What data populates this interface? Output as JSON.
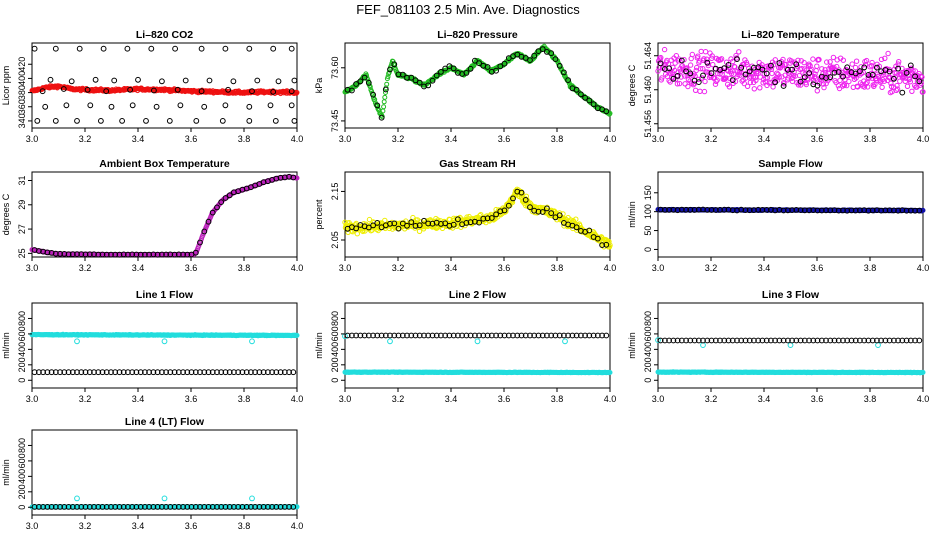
{
  "figure": {
    "title": "FEF_081103  2.5 Min. Ave. Diagnostics"
  },
  "colors": {
    "black": "#000000",
    "red": "#ee1111",
    "green": "#22bb22",
    "magenta": "#ee22ee",
    "purple": "#bb22bb",
    "yellow": "#eeee00",
    "blue": "#1111aa",
    "cyan": "#22dddd"
  },
  "chart_data": [
    {
      "type": "scatter",
      "title": "Li–820 CO2",
      "xlabel": "",
      "ylabel": "Licor ppm",
      "xlim": [
        3.0,
        4.0
      ],
      "ylim": [
        330,
        450
      ],
      "xticks": [
        "3.0",
        "3.2",
        "3.4",
        "3.6",
        "3.8",
        "4.0"
      ],
      "yticks": [
        "340",
        "360",
        "380",
        "400",
        "420"
      ],
      "series": [
        {
          "color": "red",
          "kind": "dense",
          "base": [
            [
              3.0,
              382
            ],
            [
              3.05,
              387
            ],
            [
              3.1,
              389
            ],
            [
              3.15,
              385
            ],
            [
              3.2,
              384
            ],
            [
              3.3,
              383
            ],
            [
              3.4,
              385
            ],
            [
              3.5,
              384
            ],
            [
              3.6,
              382
            ],
            [
              3.7,
              381
            ],
            [
              3.8,
              380
            ],
            [
              3.9,
              381
            ],
            [
              4.0,
              380
            ]
          ],
          "noise": 3
        },
        {
          "color": "black",
          "kind": "points",
          "points": [
            [
              3.02,
              340
            ],
            [
              3.09,
              340
            ],
            [
              3.17,
              340
            ],
            [
              3.26,
              340
            ],
            [
              3.34,
              340
            ],
            [
              3.43,
              340
            ],
            [
              3.52,
              340
            ],
            [
              3.62,
              340
            ],
            [
              3.72,
              340
            ],
            [
              3.82,
              340
            ],
            [
              3.92,
              340
            ],
            [
              3.99,
              340
            ],
            [
              3.05,
              360
            ],
            [
              3.13,
              362
            ],
            [
              3.22,
              362
            ],
            [
              3.3,
              360
            ],
            [
              3.38,
              362
            ],
            [
              3.47,
              360
            ],
            [
              3.56,
              362
            ],
            [
              3.65,
              360
            ],
            [
              3.73,
              362
            ],
            [
              3.82,
              360
            ],
            [
              3.9,
              362
            ],
            [
              3.98,
              362
            ],
            [
              3.04,
              382
            ],
            [
              3.12,
              385
            ],
            [
              3.21,
              384
            ],
            [
              3.28,
              382
            ],
            [
              3.37,
              384
            ],
            [
              3.46,
              383
            ],
            [
              3.55,
              384
            ],
            [
              3.64,
              382
            ],
            [
              3.74,
              384
            ],
            [
              3.83,
              382
            ],
            [
              3.91,
              381
            ],
            [
              3.98,
              382
            ],
            [
              3.07,
              398
            ],
            [
              3.15,
              396
            ],
            [
              3.24,
              398
            ],
            [
              3.31,
              397
            ],
            [
              3.4,
              398
            ],
            [
              3.49,
              396
            ],
            [
              3.58,
              397
            ],
            [
              3.67,
              397
            ],
            [
              3.76,
              396
            ],
            [
              3.85,
              397
            ],
            [
              3.93,
              396
            ],
            [
              3.99,
              397
            ],
            [
              3.01,
              442
            ],
            [
              3.09,
              442
            ],
            [
              3.18,
              442
            ],
            [
              3.27,
              442
            ],
            [
              3.36,
              442
            ],
            [
              3.45,
              442
            ],
            [
              3.54,
              442
            ],
            [
              3.64,
              442
            ],
            [
              3.73,
              442
            ],
            [
              3.82,
              442
            ],
            [
              3.91,
              442
            ],
            [
              3.98,
              442
            ]
          ]
        }
      ]
    },
    {
      "type": "scatter",
      "title": "Li–820 Pressure",
      "xlabel": "",
      "ylabel": "kPa",
      "xlim": [
        3.0,
        4.0
      ],
      "ylim": [
        73.43,
        73.67
      ],
      "xticks": [
        "3.0",
        "3.2",
        "3.4",
        "3.6",
        "3.8",
        "4.0"
      ],
      "yticks": [
        "73.45",
        "73.60"
      ],
      "series": [
        {
          "color": "green",
          "kind": "dense",
          "base": [
            [
              3.0,
              73.53
            ],
            [
              3.04,
              73.55
            ],
            [
              3.08,
              73.58
            ],
            [
              3.11,
              73.51
            ],
            [
              3.14,
              73.46
            ],
            [
              3.16,
              73.57
            ],
            [
              3.18,
              73.62
            ],
            [
              3.2,
              73.58
            ],
            [
              3.25,
              73.57
            ],
            [
              3.3,
              73.55
            ],
            [
              3.35,
              73.58
            ],
            [
              3.4,
              73.6
            ],
            [
              3.45,
              73.58
            ],
            [
              3.5,
              73.62
            ],
            [
              3.55,
              73.59
            ],
            [
              3.6,
              73.61
            ],
            [
              3.65,
              73.64
            ],
            [
              3.7,
              73.62
            ],
            [
              3.75,
              73.66
            ],
            [
              3.8,
              73.62
            ],
            [
              3.85,
              73.55
            ],
            [
              3.9,
              73.52
            ],
            [
              3.95,
              73.49
            ],
            [
              4.0,
              73.47
            ]
          ],
          "noise": 0.006
        },
        {
          "color": "black",
          "kind": "follow",
          "step": 0.016,
          "noise": 0.012
        }
      ]
    },
    {
      "type": "scatter",
      "title": "Li–820 Temperature",
      "xlabel": "",
      "ylabel": "degrees C",
      "xlim": [
        3.0,
        4.0
      ],
      "ylim": [
        51.4555,
        51.4655
      ],
      "xticks": [
        "3.0",
        "3.2",
        "3.4",
        "3.6",
        "3.8",
        "4.0"
      ],
      "yticks": [
        "51.456",
        "51.460",
        "51.464"
      ],
      "series": [
        {
          "color": "magenta",
          "kind": "scatter",
          "base": [
            [
              3.0,
              51.4625
            ],
            [
              4.0,
              51.4615
            ]
          ],
          "noise": 0.0035,
          "count": 480
        },
        {
          "color": "black",
          "kind": "follow",
          "step": 0.016,
          "noise": 0.0025
        }
      ]
    },
    {
      "type": "scatter",
      "title": "Ambient Box Temperature",
      "xlabel": "",
      "ylabel": "degrees C",
      "xlim": [
        3.0,
        4.0
      ],
      "ylim": [
        24.7,
        31.7
      ],
      "xticks": [
        "3.0",
        "3.2",
        "3.4",
        "3.6",
        "3.8",
        "4.0"
      ],
      "yticks": [
        "25",
        "27",
        "29",
        "31"
      ],
      "series": [
        {
          "color": "purple",
          "kind": "dense",
          "base": [
            [
              3.0,
              25.3
            ],
            [
              3.05,
              25.1
            ],
            [
              3.1,
              24.95
            ],
            [
              3.2,
              24.92
            ],
            [
              3.3,
              24.9
            ],
            [
              3.4,
              24.9
            ],
            [
              3.5,
              24.9
            ],
            [
              3.61,
              24.9
            ],
            [
              3.62,
              25.1
            ],
            [
              3.65,
              26.8
            ],
            [
              3.68,
              28.3
            ],
            [
              3.72,
              29.4
            ],
            [
              3.76,
              30.0
            ],
            [
              3.82,
              30.4
            ],
            [
              3.88,
              30.9
            ],
            [
              3.93,
              31.2
            ],
            [
              3.97,
              31.3
            ],
            [
              4.0,
              31.2
            ]
          ],
          "noise": 0.02,
          "marker": "line"
        },
        {
          "color": "black",
          "kind": "follow",
          "step": 0.016,
          "noise": 0.03
        }
      ]
    },
    {
      "type": "scatter",
      "title": "Gas Stream RH",
      "xlabel": "",
      "ylabel": "percent",
      "xlim": [
        3.0,
        4.0
      ],
      "ylim": [
        2.015,
        2.19
      ],
      "xticks": [
        "3.0",
        "3.2",
        "3.4",
        "3.6",
        "3.8",
        "4.0"
      ],
      "yticks": [
        "2.05",
        "2.15"
      ],
      "series": [
        {
          "color": "yellow",
          "kind": "scatter",
          "base": [
            [
              3.0,
              2.075
            ],
            [
              3.2,
              2.08
            ],
            [
              3.4,
              2.085
            ],
            [
              3.55,
              2.095
            ],
            [
              3.6,
              2.11
            ],
            [
              3.65,
              2.15
            ],
            [
              3.7,
              2.12
            ],
            [
              3.8,
              2.1
            ],
            [
              3.9,
              2.07
            ],
            [
              4.0,
              2.04
            ]
          ],
          "noise": 0.018,
          "count": 520
        },
        {
          "color": "black",
          "kind": "follow",
          "step": 0.016,
          "noise": 0.015
        }
      ]
    },
    {
      "type": "scatter",
      "title": "Sample Flow",
      "xlabel": "",
      "ylabel": "ml/min",
      "xlim": [
        3.0,
        4.0
      ],
      "ylim": [
        -20,
        205
      ],
      "xticks": [
        "3.0",
        "3.2",
        "3.4",
        "3.6",
        "3.8",
        "4.0"
      ],
      "yticks": [
        "0",
        "50",
        "100",
        "150"
      ],
      "series": [
        {
          "color": "blue",
          "kind": "dense",
          "base": [
            [
              3.0,
              105
            ],
            [
              4.0,
              103
            ]
          ],
          "noise": 2
        },
        {
          "color": "black",
          "kind": "follow",
          "step": 0.016,
          "noise": 2
        }
      ]
    },
    {
      "type": "scatter",
      "title": "Line 1 Flow",
      "xlabel": "",
      "ylabel": "ml/min",
      "xlim": [
        3.0,
        4.0
      ],
      "ylim": [
        -100,
        1000
      ],
      "xticks": [
        "3.0",
        "3.2",
        "3.4",
        "3.6",
        "3.8",
        "4.0"
      ],
      "yticks": [
        "0",
        "200",
        "400",
        "600",
        "800"
      ],
      "series": [
        {
          "color": "cyan",
          "kind": "dense",
          "base": [
            [
              3.0,
              590
            ],
            [
              4.0,
              580
            ]
          ],
          "noise": 8
        },
        {
          "color": "cyan",
          "kind": "points",
          "points": [
            [
              3.17,
              505
            ],
            [
              3.5,
              505
            ],
            [
              3.83,
              505
            ]
          ]
        },
        {
          "color": "black",
          "kind": "line-circles",
          "y": 105,
          "step": 0.016
        }
      ]
    },
    {
      "type": "scatter",
      "title": "Line 2 Flow",
      "xlabel": "",
      "ylabel": "ml/min",
      "xlim": [
        3.0,
        4.0
      ],
      "ylim": [
        -100,
        1000
      ],
      "xticks": [
        "3.0",
        "3.2",
        "3.4",
        "3.6",
        "3.8",
        "4.0"
      ],
      "yticks": [
        "0",
        "200",
        "400",
        "600",
        "800"
      ],
      "series": [
        {
          "color": "cyan",
          "kind": "dense",
          "base": [
            [
              3.0,
              105
            ],
            [
              4.0,
              100
            ]
          ],
          "noise": 6
        },
        {
          "color": "cyan",
          "kind": "points",
          "points": [
            [
              3.0,
              570
            ],
            [
              3.17,
              505
            ],
            [
              3.5,
              505
            ],
            [
              3.83,
              505
            ]
          ]
        },
        {
          "color": "black",
          "kind": "line-circles",
          "y": 580,
          "step": 0.016
        }
      ]
    },
    {
      "type": "scatter",
      "title": "Line 3 Flow",
      "xlabel": "",
      "ylabel": "ml/min",
      "xlim": [
        3.0,
        4.0
      ],
      "ylim": [
        -100,
        1000
      ],
      "xticks": [
        "3.0",
        "3.2",
        "3.4",
        "3.6",
        "3.8",
        "4.0"
      ],
      "yticks": [
        "0",
        "200",
        "400",
        "600",
        "800"
      ],
      "series": [
        {
          "color": "cyan",
          "kind": "dense",
          "base": [
            [
              3.0,
              105
            ],
            [
              4.0,
              100
            ]
          ],
          "noise": 6
        },
        {
          "color": "cyan",
          "kind": "points",
          "points": [
            [
              3.0,
              520
            ],
            [
              3.17,
              455
            ],
            [
              3.5,
              455
            ],
            [
              3.83,
              455
            ]
          ]
        },
        {
          "color": "black",
          "kind": "line-circles",
          "y": 515,
          "step": 0.016
        }
      ]
    },
    {
      "type": "scatter",
      "title": "Line 4 (LT) Flow",
      "xlabel": "",
      "ylabel": "ml/min",
      "xlim": [
        3.0,
        4.0
      ],
      "ylim": [
        -100,
        1000
      ],
      "xticks": [
        "3.0",
        "3.2",
        "3.4",
        "3.6",
        "3.8",
        "4.0"
      ],
      "yticks": [
        "0",
        "200",
        "400",
        "600",
        "800"
      ],
      "series": [
        {
          "color": "cyan",
          "kind": "dense",
          "base": [
            [
              3.0,
              5
            ],
            [
              4.0,
              5
            ]
          ],
          "noise": 3
        },
        {
          "color": "cyan",
          "kind": "points",
          "points": [
            [
              3.17,
              115
            ],
            [
              3.5,
              115
            ],
            [
              3.83,
              115
            ]
          ]
        },
        {
          "color": "black",
          "kind": "line-circles",
          "y": 5,
          "step": 0.016
        }
      ]
    }
  ]
}
